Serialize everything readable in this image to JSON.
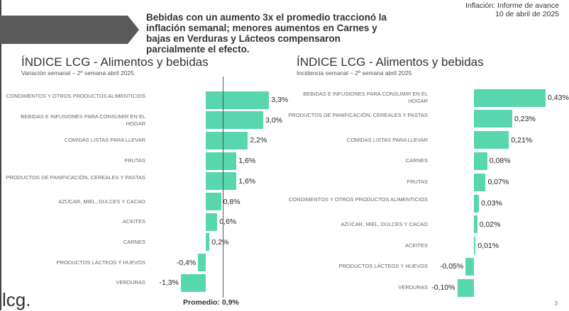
{
  "header": {
    "headline": "Bebidas con un aumento 3x el promedio traccionó la inflación semanal; menores aumentos en Carnes y bajas en Verduras y Lácteos compensaron parcialmente el efecto.",
    "report_title": "Inflación: Informe de avance",
    "report_date": "10 de abril de 2025"
  },
  "footer": {
    "logo": "lcg.",
    "page": "3"
  },
  "colors": {
    "bar": "#58d6ad"
  },
  "chart_data": [
    {
      "type": "bar",
      "orientation": "horizontal",
      "title": "ÍNDICE LCG - Alimentos y bebidas",
      "subtitle": "Variación semanal – 2º semana abril 2025",
      "categories": [
        "CONDIMENTOS Y OTROS PRODUCTOS ALIMENTICIOS",
        "BEBIDAS E INFUSIONES PARA CONSUMIR EN EL HOGAR",
        "COMIDAS LISTAS PARA LLEVAR",
        "FRUTAS",
        "PRODUCTOS DE PANIFICACIÓN, CEREALES Y PASTAS",
        "AZÚCAR, MIEL, DULCES Y CACAO",
        "ACEITES",
        "CARNES",
        "PRODUCTOS LÁCTEOS Y HUEVOS",
        "VERDURAS"
      ],
      "values": [
        3.3,
        3.0,
        2.2,
        1.6,
        1.6,
        0.8,
        0.6,
        0.2,
        -0.4,
        -1.3
      ],
      "labels": [
        "3,3%",
        "3,0%",
        "2,2%",
        "1,6%",
        "1,6%",
        "0,8%",
        "0,6%",
        "0,2%",
        "-0,4%",
        "-1,3%"
      ],
      "reference_line": {
        "value": 0.9,
        "label": "Promedio: 0,9%"
      }
    },
    {
      "type": "bar",
      "orientation": "horizontal",
      "title": "ÍNDICE LCG - Alimentos y bebidas",
      "subtitle": "Incidencia semanal – 2º semana abril 2025",
      "categories": [
        "BEBIDAS E INFUSIONES PARA CONSUMIR EN EL HOGAR",
        "PRODUCTOS DE PANIFICACIÓN, CEREALES Y PASTAS",
        "COMIDAS LISTAS PARA LLEVAR",
        "CARNES",
        "FRUTAS",
        "CONDIMENTOS Y OTROS PRODUCTOS ALIMENTICIOS",
        "AZÚCAR, MIEL, DULCES Y CACAO",
        "ACEITES",
        "PRODUCTOS LÁCTEOS Y HUEVOS",
        "VERDURAS"
      ],
      "values": [
        0.43,
        0.23,
        0.21,
        0.08,
        0.07,
        0.03,
        0.02,
        0.01,
        -0.05,
        -0.1
      ],
      "labels": [
        "0,43%",
        "0,23%",
        "0,21%",
        "0,08%",
        "0,07%",
        "0,03%",
        "0,02%",
        "0,01%",
        "-0,05%",
        "-0,10%"
      ]
    }
  ]
}
